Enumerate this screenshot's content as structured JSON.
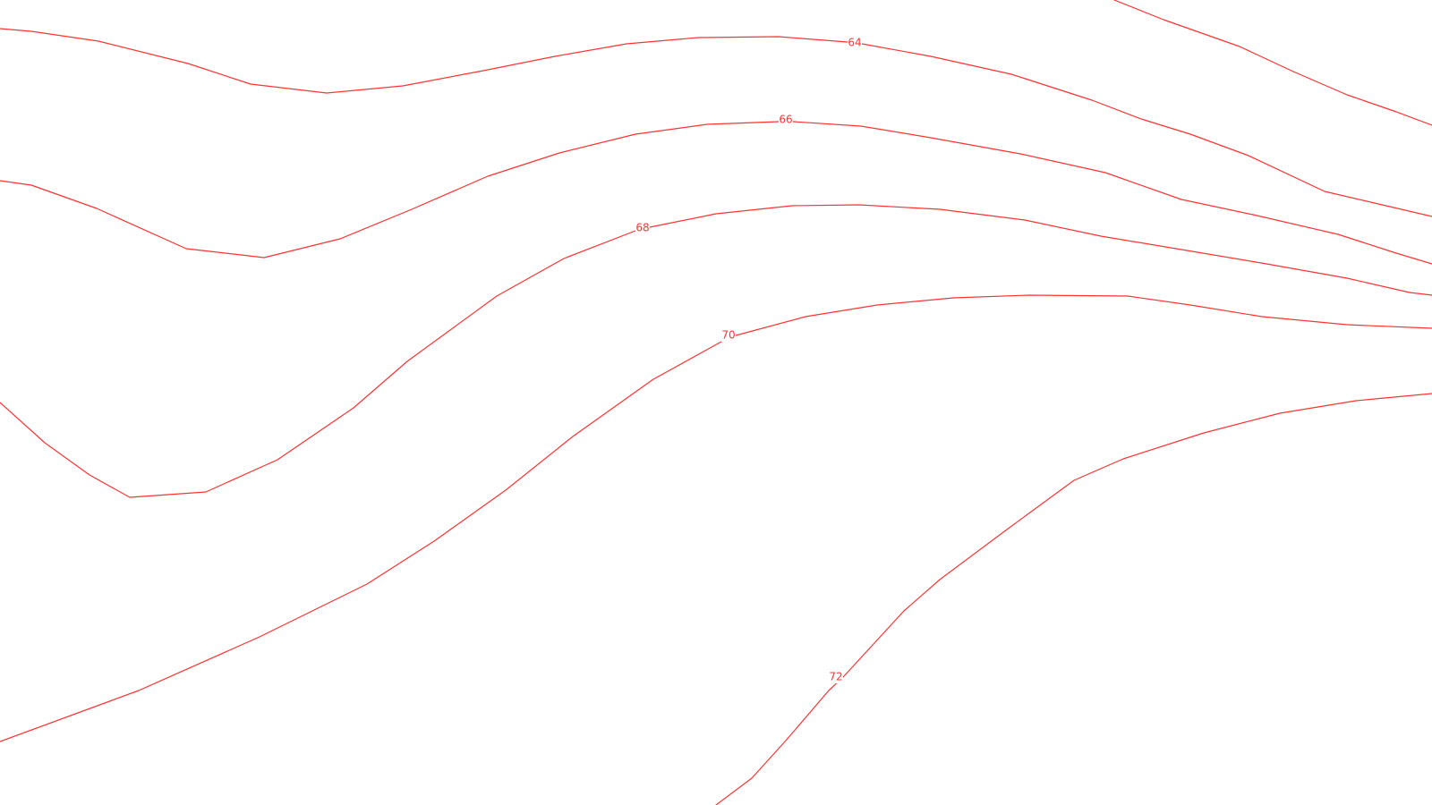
{
  "map": {
    "contour_color": "#ff3333",
    "background_color": "#ffffff",
    "contours": [
      {
        "id": "top-right-edge",
        "label": ""
      },
      {
        "id": "isoline-64",
        "label": "64"
      },
      {
        "id": "isoline-66",
        "label": "66"
      },
      {
        "id": "isoline-68",
        "label": "68"
      },
      {
        "id": "isoline-70",
        "label": "70"
      },
      {
        "id": "isoline-72",
        "label": "72"
      }
    ]
  }
}
